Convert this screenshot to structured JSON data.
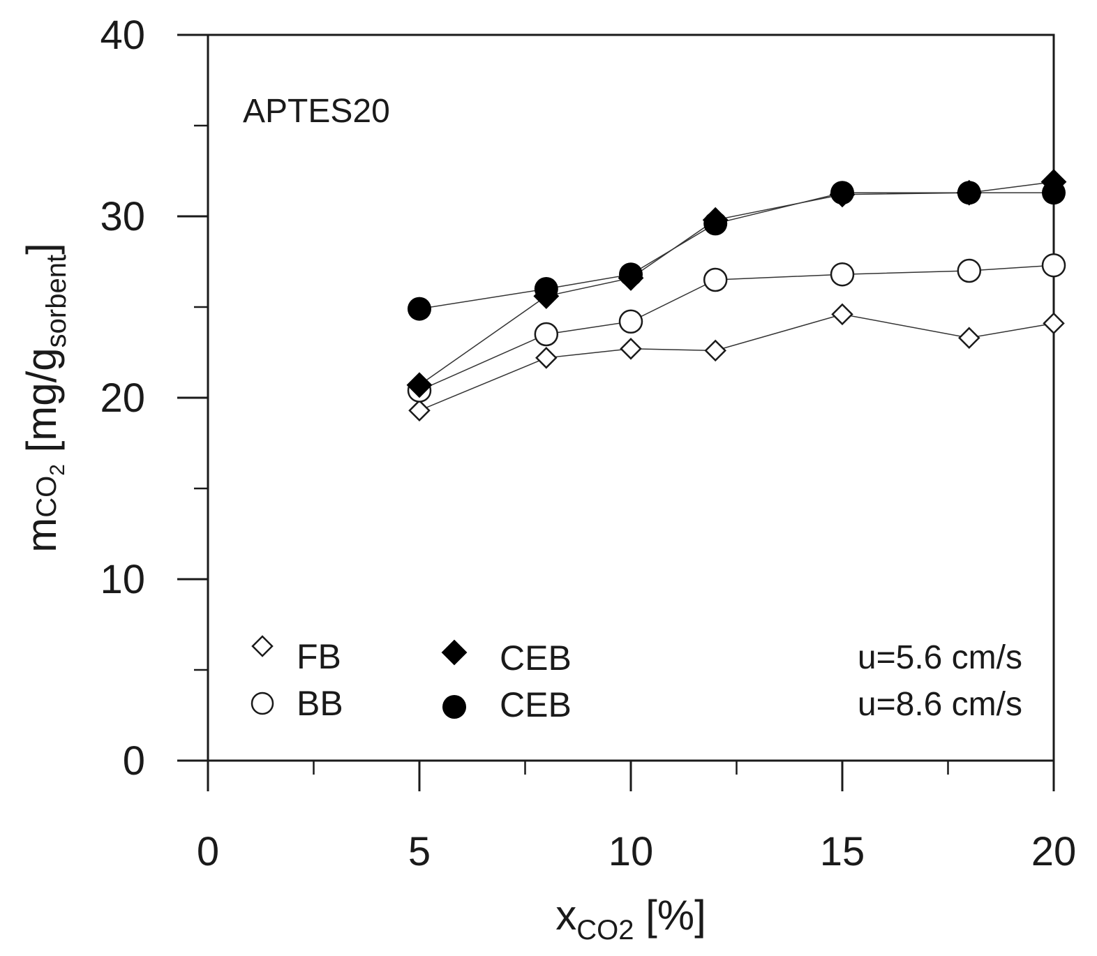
{
  "chart_data": {
    "type": "line",
    "title": "",
    "annotation": "APTES20",
    "xlabel": {
      "main": "x",
      "sub": "CO2",
      "unit": " [%]"
    },
    "ylabel": {
      "main": "m",
      "sub1": "CO",
      "sub1b": "2",
      "mid": " [mg/g",
      "sub2": "sorbent",
      "end": "]"
    },
    "xlim": [
      0,
      20
    ],
    "ylim": [
      0,
      40
    ],
    "xticks": [
      0,
      5,
      10,
      15,
      20
    ],
    "yticks": [
      0,
      10,
      20,
      30,
      40
    ],
    "x_minor_ticks": [
      2.5,
      7.5,
      12.5,
      17.5
    ],
    "y_minor_ticks": [
      5,
      15,
      25,
      35
    ],
    "grid": false,
    "series": [
      {
        "name": "FB",
        "marker": "diamond-open",
        "x": [
          5,
          8,
          10,
          12,
          15,
          18,
          20
        ],
        "values": [
          19.3,
          22.2,
          22.7,
          22.6,
          24.6,
          23.3,
          24.1
        ]
      },
      {
        "name": "BB",
        "marker": "circle-open",
        "x": [
          5,
          8,
          10,
          12,
          15,
          18,
          20
        ],
        "values": [
          20.4,
          23.5,
          24.2,
          26.5,
          26.8,
          27.0,
          27.3
        ]
      },
      {
        "name": "CEB",
        "marker": "diamond-filled",
        "x": [
          5,
          8,
          10,
          12,
          15,
          18,
          20
        ],
        "values": [
          20.7,
          25.6,
          26.6,
          29.8,
          31.2,
          31.3,
          31.9
        ]
      },
      {
        "name": "CEB",
        "marker": "circle-filled",
        "x": [
          5,
          8,
          10,
          12,
          15,
          18,
          20
        ],
        "values": [
          24.9,
          26.0,
          26.8,
          29.6,
          31.3,
          31.3,
          31.3
        ]
      }
    ],
    "legend": {
      "position": "bottom-left",
      "items": [
        {
          "label": "FB",
          "marker": "diamond-open"
        },
        {
          "label": "BB",
          "marker": "circle-open"
        },
        {
          "label": "CEB",
          "marker": "diamond-filled",
          "note": "u=5.6 cm/s"
        },
        {
          "label": "CEB",
          "marker": "circle-filled",
          "note": "u=8.6 cm/s"
        }
      ]
    }
  }
}
